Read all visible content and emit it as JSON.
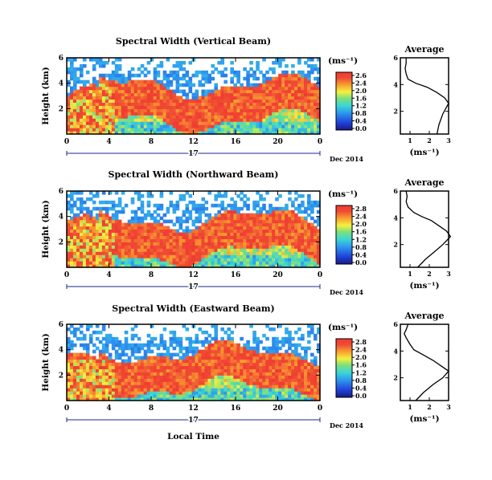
{
  "chart_data": [
    {
      "type": "heatmap",
      "title": "Spectral Width (Vertical Beam)",
      "ylabel": "Height (km)",
      "x_ticks": [
        "0",
        "4",
        "8",
        "12",
        "16",
        "20",
        "0"
      ],
      "xlim": [
        0,
        24
      ],
      "y_ticks": [
        "6",
        "4",
        "2"
      ],
      "ylim": [
        0,
        6
      ],
      "date_axis": {
        "day": "17",
        "label": "Dec 2014"
      },
      "colorbar": {
        "unit": "(ms⁻¹)",
        "ticks": [
          "2.6",
          "2.4",
          "2.0",
          "1.6",
          "1.2",
          "0.8",
          "0.4",
          "0.0"
        ]
      },
      "average_profile": {
        "title": "Average",
        "xlabel": "(ms⁻¹)",
        "x_ticks": [
          "1",
          "2",
          "3"
        ],
        "y_ticks": [
          "6",
          "4",
          "2"
        ],
        "xlim": [
          0.5,
          3
        ],
        "ylim": [
          0.3,
          6
        ],
        "width_ms": [
          2.4,
          2.5,
          2.7,
          3.0,
          2.8,
          2.4,
          1.9,
          1.3,
          0.9,
          0.8,
          0.75,
          0.8,
          0.8
        ],
        "height_km": [
          0.3,
          1.0,
          1.8,
          2.6,
          3.0,
          3.4,
          3.8,
          4.1,
          4.4,
          4.8,
          5.2,
          5.6,
          6.0
        ]
      }
    },
    {
      "type": "heatmap",
      "title": "Spectral Width (Northward Beam)",
      "ylabel": "Height (km)",
      "x_ticks": [
        "0",
        "4",
        "8",
        "12",
        "16",
        "20",
        "0"
      ],
      "xlim": [
        0,
        24
      ],
      "y_ticks": [
        "6",
        "4",
        "2"
      ],
      "ylim": [
        0,
        6
      ],
      "date_axis": {
        "day": "17",
        "label": "Dec 2014"
      },
      "colorbar": {
        "unit": "(ms⁻¹)",
        "ticks": [
          "2.8",
          "2.4",
          "2.0",
          "1.6",
          "1.2",
          "0.8",
          "0.4",
          "0.0"
        ]
      },
      "average_profile": {
        "title": "Average",
        "xlabel": "(ms⁻¹)",
        "x_ticks": [
          "1",
          "2",
          "3"
        ],
        "y_ticks": [
          "6",
          "4",
          "2"
        ],
        "xlim": [
          0.5,
          3
        ],
        "ylim": [
          0.3,
          6
        ],
        "width_ms": [
          1.4,
          1.8,
          2.3,
          2.7,
          3.1,
          2.9,
          2.5,
          2.1,
          1.6,
          1.2,
          0.9,
          0.8,
          0.85,
          0.8
        ],
        "height_km": [
          0.3,
          0.9,
          1.5,
          2.0,
          2.6,
          3.0,
          3.4,
          3.8,
          4.1,
          4.4,
          4.8,
          5.2,
          5.6,
          6.0
        ]
      }
    },
    {
      "type": "heatmap",
      "title": "Spectral Width (Eastward Beam)",
      "ylabel": "Height (km)",
      "xlabel": "Local Time",
      "x_ticks": [
        "0",
        "4",
        "8",
        "12",
        "16",
        "20",
        "0"
      ],
      "xlim": [
        0,
        24
      ],
      "y_ticks": [
        "6",
        "4",
        "2"
      ],
      "ylim": [
        0,
        6
      ],
      "date_axis": {
        "day": "17",
        "label": "Dec 2014"
      },
      "colorbar": {
        "unit": "(ms⁻¹)",
        "ticks": [
          "2.8",
          "2.4",
          "2.0",
          "1.6",
          "1.2",
          "0.8",
          "0.4",
          "0.0"
        ]
      },
      "average_profile": {
        "title": "Average",
        "xlabel": "(ms⁻¹)",
        "x_ticks": [
          "1",
          "2",
          "3"
        ],
        "y_ticks": [
          "6",
          "4",
          "2"
        ],
        "xlim": [
          0.5,
          3
        ],
        "ylim": [
          0.3,
          6
        ],
        "width_ms": [
          1.3,
          1.7,
          2.2,
          2.7,
          3.0,
          2.6,
          2.2,
          1.7,
          1.2,
          1.0,
          0.8,
          0.7,
          0.8,
          0.9
        ],
        "height_km": [
          0.3,
          0.9,
          1.5,
          2.0,
          2.5,
          2.9,
          3.3,
          3.7,
          4.1,
          4.5,
          5.0,
          5.3,
          5.6,
          6.0
        ]
      }
    }
  ]
}
